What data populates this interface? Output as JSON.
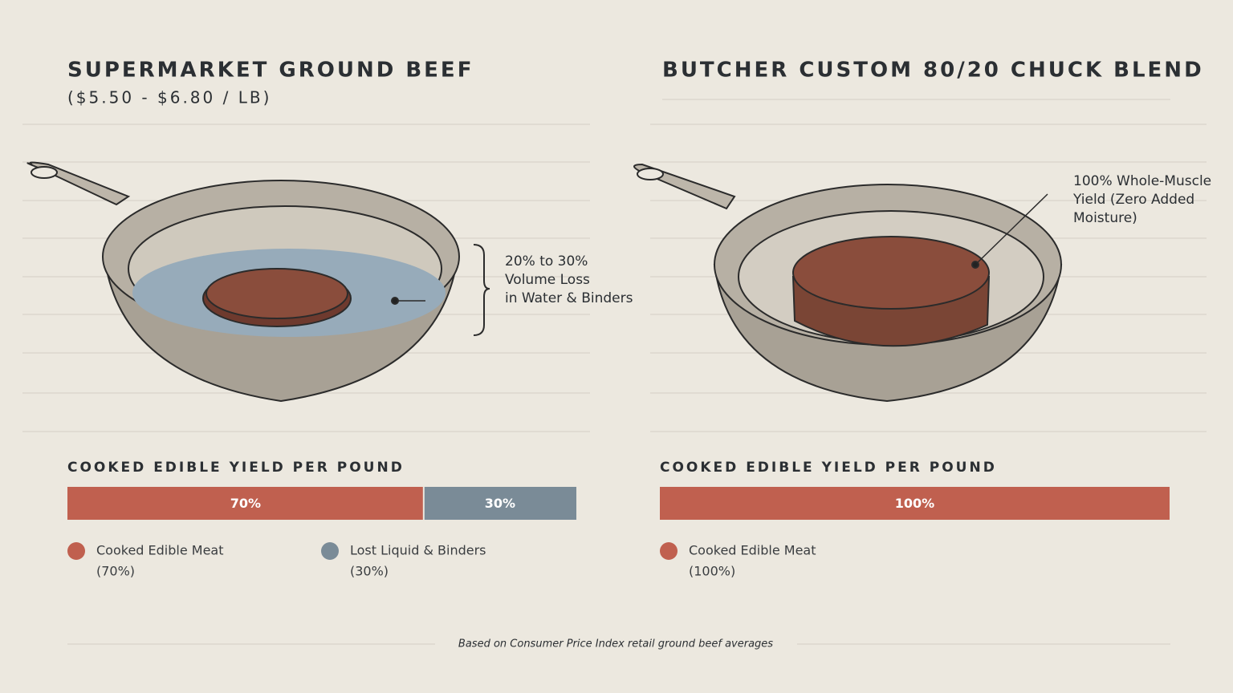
{
  "chart_data": [
    {
      "type": "bar",
      "orientation": "horizontal",
      "stacked": true,
      "title": "SUPERMARKET GROUND BEEF",
      "subtitle": "($5.50 - $6.80 / LB)",
      "annotation": [
        "20% to 30%",
        "Volume Loss",
        "in Water & Binders"
      ],
      "chart_label": "COOKED EDIBLE YIELD PER POUND",
      "categories": [
        null
      ],
      "xlim": [
        0,
        100
      ],
      "series": [
        {
          "name": "Cooked Edible Meat",
          "legend_note": "(70%)",
          "color": "#c0604f",
          "values": [
            70
          ],
          "value_labels": [
            "70%"
          ]
        },
        {
          "name": "Lost Liquid & Binders",
          "legend_note": "(30%)",
          "color": "#7a8b97",
          "values": [
            30
          ],
          "value_labels": [
            "30%"
          ]
        }
      ]
    },
    {
      "type": "bar",
      "orientation": "horizontal",
      "stacked": true,
      "title": "BUTCHER CUSTOM 80/20 CHUCK BLEND",
      "annotation": [
        "100% Whole-Muscle",
        "Yield (Zero Added",
        "Moisture)"
      ],
      "chart_label": "COOKED EDIBLE YIELD PER POUND",
      "categories": [
        null
      ],
      "xlim": [
        0,
        100
      ],
      "series": [
        {
          "name": "Cooked Edible Meat",
          "legend_note": "(100%)",
          "color": "#c0604f",
          "values": [
            100
          ],
          "value_labels": [
            "100%"
          ]
        }
      ]
    }
  ],
  "footer": "Based on Consumer Price Index retail ground beef averages"
}
